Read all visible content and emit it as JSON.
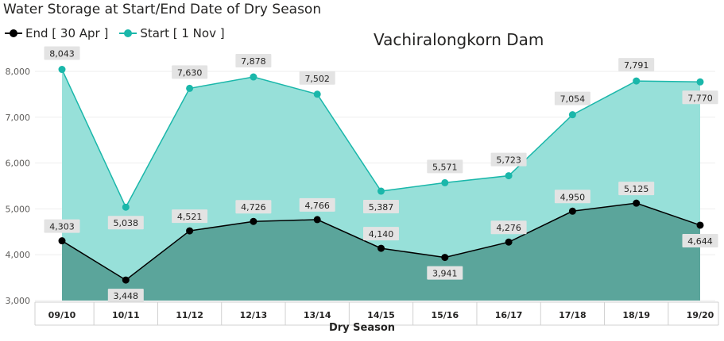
{
  "title": "Water Storage at Start/End Date of Dry Season",
  "subtitle": "Vachiralongkorn Dam",
  "colors": {
    "start": "#1ab7aa",
    "start_fill": "#97e0d9",
    "end": "#000000",
    "end_fill": "#5ba59b",
    "label_bg": "#e3e3e3"
  },
  "chart_data": {
    "type": "area",
    "categories": [
      "09/10",
      "10/11",
      "11/12",
      "12/13",
      "13/14",
      "14/15",
      "15/16",
      "16/17",
      "17/18",
      "18/19",
      "19/20"
    ],
    "series": [
      {
        "name": "End [ 30 Apr ]",
        "values": [
          4303,
          3448,
          4521,
          4726,
          4766,
          4140,
          3941,
          4276,
          4950,
          5125,
          4644
        ],
        "labels": [
          "4,303",
          "3,448",
          "4,521",
          "4,726",
          "4,766",
          "4,140",
          "3,941",
          "4,276",
          "4,950",
          "5,125",
          "4,644"
        ]
      },
      {
        "name": "Start [ 1 Nov ]",
        "values": [
          8043,
          5038,
          7630,
          7878,
          7502,
          5387,
          5571,
          5723,
          7054,
          7791,
          7770
        ],
        "labels": [
          "8,043",
          "5,038",
          "7,630",
          "7,878",
          "7,502",
          "5,387",
          "5,571",
          "5,723",
          "7,054",
          "7,791",
          "7,770"
        ]
      }
    ],
    "yticks": [
      3000,
      4000,
      5000,
      6000,
      7000,
      8000
    ],
    "ytick_labels": [
      "3,000",
      "4,000",
      "5,000",
      "6,000",
      "7,000",
      "8,000"
    ],
    "ylim": [
      3000,
      8400
    ],
    "xlabel": "Dry Season",
    "ylabel": "",
    "legend_position": "top-left",
    "grid": true
  }
}
